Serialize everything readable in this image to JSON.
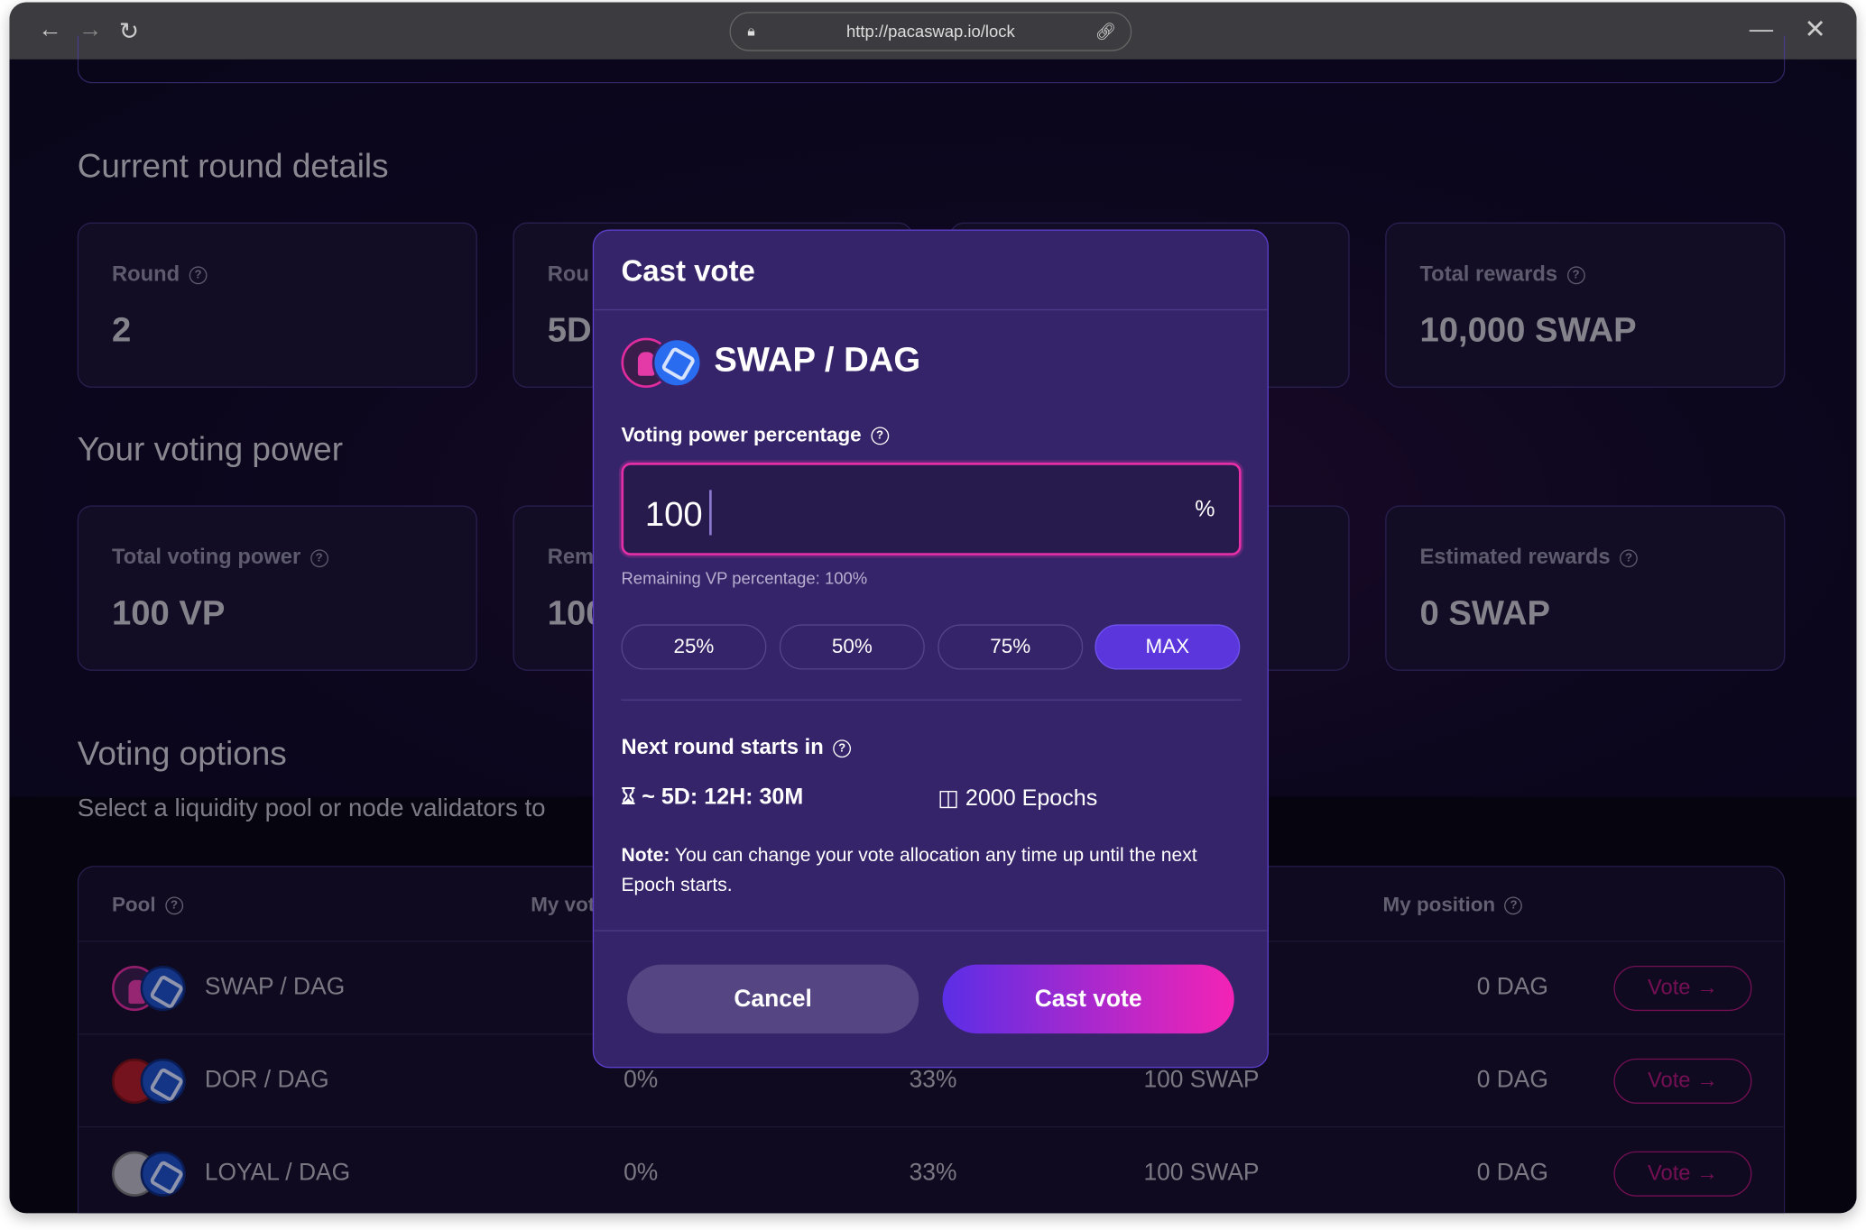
{
  "browser": {
    "url": "http://pacaswap.io/lock",
    "back_icon": "arrow-left",
    "forward_icon": "arrow-right",
    "reload_icon": "reload",
    "minimize_icon": "minus",
    "close_icon": "x"
  },
  "round": {
    "heading": "Current round details",
    "cards": [
      {
        "label": "Round",
        "value": "2"
      },
      {
        "label": "Rou",
        "value": "5D"
      },
      {
        "label": "",
        "value": ""
      },
      {
        "label": "Total rewards",
        "value": "10,000 SWAP"
      }
    ]
  },
  "power": {
    "heading": "Your voting power",
    "cards": [
      {
        "label": "Total voting power",
        "value": "100 VP"
      },
      {
        "label": "Rem",
        "value": "100"
      },
      {
        "label": "",
        "value": ""
      },
      {
        "label": "Estimated rewards",
        "value": "0 SWAP"
      }
    ]
  },
  "options": {
    "heading": "Voting options",
    "subtitle": "Select a liquidity pool or node validators to",
    "headers": {
      "pool": "Pool",
      "my_vote": "My vot",
      "my_position": "My position"
    },
    "vote_label": "Vote",
    "rows": [
      {
        "pool": "SWAP / DAG",
        "my_vote": "",
        "share": "",
        "rewards": "",
        "position": "0 DAG"
      },
      {
        "pool": "DOR / DAG",
        "my_vote": "0%",
        "share": "33%",
        "rewards": "100 SWAP",
        "position": "0 DAG"
      },
      {
        "pool": "LOYAL / DAG",
        "my_vote": "0%",
        "share": "33%",
        "rewards": "100 SWAP",
        "position": "0 DAG"
      }
    ]
  },
  "modal": {
    "title": "Cast vote",
    "pair": "SWAP / DAG",
    "label": "Voting power percentage",
    "input_value": "100",
    "unit": "%",
    "remaining": "Remaining VP percentage: 100%",
    "presets": [
      "25%",
      "50%",
      "75%",
      "MAX"
    ],
    "next_round": "Next round starts in",
    "countdown": "~ 5D: 12H: 30M",
    "epochs": "2000 Epochs",
    "note_bold": "Note:",
    "note": " You can change your vote allocation any time up until the next Epoch starts.",
    "cancel": "Cancel",
    "submit": "Cast vote"
  },
  "colors": {
    "accent": "#5a36dc",
    "pink": "#e42fa8",
    "modal_bg": "#36246a"
  }
}
